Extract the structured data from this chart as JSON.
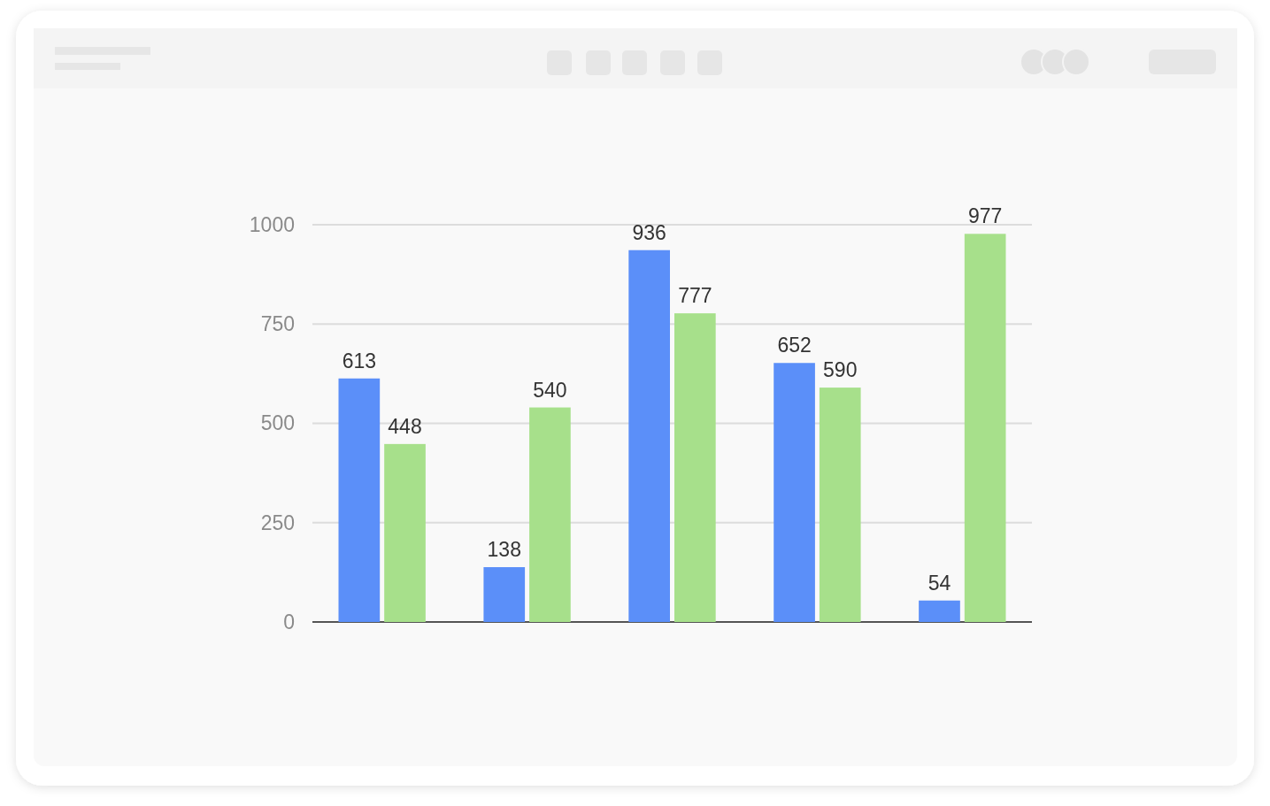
{
  "chart_data": {
    "type": "bar",
    "categories": [
      null,
      null,
      null,
      null,
      null
    ],
    "series": [
      {
        "color": "#5b8ff9",
        "values": [
          613,
          138,
          936,
          652,
          54
        ]
      },
      {
        "color": "#a7e08b",
        "values": [
          448,
          540,
          777,
          590,
          977
        ]
      }
    ],
    "ylim": [
      0,
      1000
    ],
    "yticks": [
      0,
      250,
      500,
      750,
      1000
    ],
    "grid": "y",
    "data_labels": true
  }
}
